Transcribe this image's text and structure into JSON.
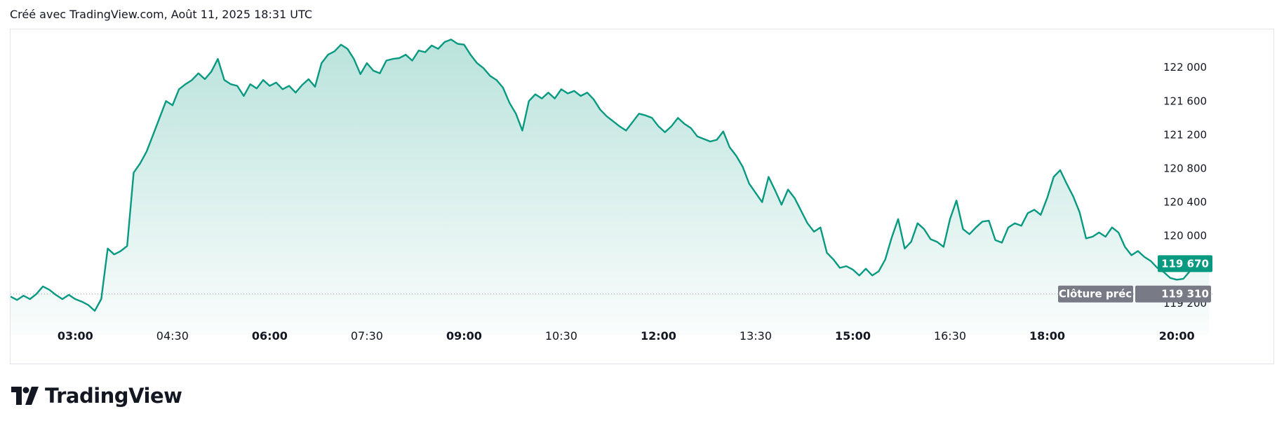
{
  "header": {
    "created_text": "Créé avec TradingView.com, Août 11, 2025 18:31 UTC"
  },
  "brand": {
    "logo_text": "TradingView"
  },
  "colors": {
    "line": "#089981",
    "fill_top": "#b2dfd4",
    "badge_last": "#089981",
    "badge_prev": "#787b86",
    "prev_line": "#9598a1"
  },
  "chart_data": {
    "type": "area",
    "x_ticks": [
      {
        "label": "03:00",
        "t": 3.0,
        "bold": true
      },
      {
        "label": "04:30",
        "t": 4.5,
        "bold": false
      },
      {
        "label": "06:00",
        "t": 6.0,
        "bold": true
      },
      {
        "label": "07:30",
        "t": 7.5,
        "bold": false
      },
      {
        "label": "09:00",
        "t": 9.0,
        "bold": true
      },
      {
        "label": "10:30",
        "t": 10.5,
        "bold": false
      },
      {
        "label": "12:00",
        "t": 12.0,
        "bold": true
      },
      {
        "label": "13:30",
        "t": 13.5,
        "bold": false
      },
      {
        "label": "15:00",
        "t": 15.0,
        "bold": true
      },
      {
        "label": "16:30",
        "t": 16.5,
        "bold": false
      },
      {
        "label": "18:00",
        "t": 18.0,
        "bold": true
      },
      {
        "label": "20:00",
        "t": 20.0,
        "bold": true
      }
    ],
    "y_ticks": [
      {
        "label": "122 000",
        "v": 122000
      },
      {
        "label": "121 600",
        "v": 121600
      },
      {
        "label": "121 200",
        "v": 121200
      },
      {
        "label": "120 800",
        "v": 120800
      },
      {
        "label": "120 400",
        "v": 120400
      },
      {
        "label": "120 000",
        "v": 120000
      },
      {
        "label": "119 200",
        "v": 119200
      }
    ],
    "x_range": [
      2.0,
      20.55
    ],
    "y_range": [
      119100,
      122450
    ],
    "last_price": {
      "label": "119 670",
      "value": 119670
    },
    "prev_close": {
      "name": "Clôture préc",
      "label": "119 310",
      "value": 119310
    },
    "points": [
      [
        2.0,
        119280
      ],
      [
        2.1,
        119240
      ],
      [
        2.2,
        119290
      ],
      [
        2.3,
        119250
      ],
      [
        2.4,
        119310
      ],
      [
        2.5,
        119400
      ],
      [
        2.6,
        119360
      ],
      [
        2.7,
        119300
      ],
      [
        2.8,
        119250
      ],
      [
        2.9,
        119300
      ],
      [
        3.0,
        119250
      ],
      [
        3.1,
        119220
      ],
      [
        3.2,
        119180
      ],
      [
        3.3,
        119110
      ],
      [
        3.4,
        119250
      ],
      [
        3.5,
        119850
      ],
      [
        3.6,
        119780
      ],
      [
        3.7,
        119820
      ],
      [
        3.8,
        119880
      ],
      [
        3.9,
        120750
      ],
      [
        4.0,
        120860
      ],
      [
        4.1,
        121000
      ],
      [
        4.2,
        121200
      ],
      [
        4.3,
        121400
      ],
      [
        4.4,
        121600
      ],
      [
        4.5,
        121550
      ],
      [
        4.6,
        121740
      ],
      [
        4.7,
        121800
      ],
      [
        4.8,
        121850
      ],
      [
        4.9,
        121930
      ],
      [
        5.0,
        121860
      ],
      [
        5.1,
        121950
      ],
      [
        5.2,
        122100
      ],
      [
        5.3,
        121850
      ],
      [
        5.4,
        121800
      ],
      [
        5.5,
        121780
      ],
      [
        5.6,
        121660
      ],
      [
        5.7,
        121800
      ],
      [
        5.8,
        121750
      ],
      [
        5.9,
        121850
      ],
      [
        6.0,
        121780
      ],
      [
        6.1,
        121820
      ],
      [
        6.2,
        121740
      ],
      [
        6.3,
        121780
      ],
      [
        6.4,
        121700
      ],
      [
        6.5,
        121790
      ],
      [
        6.6,
        121860
      ],
      [
        6.7,
        121770
      ],
      [
        6.8,
        122050
      ],
      [
        6.9,
        122150
      ],
      [
        7.0,
        122190
      ],
      [
        7.1,
        122270
      ],
      [
        7.2,
        122220
      ],
      [
        7.3,
        122100
      ],
      [
        7.4,
        121920
      ],
      [
        7.5,
        122050
      ],
      [
        7.6,
        121960
      ],
      [
        7.7,
        121930
      ],
      [
        7.8,
        122080
      ],
      [
        7.9,
        122100
      ],
      [
        8.0,
        122110
      ],
      [
        8.1,
        122150
      ],
      [
        8.2,
        122080
      ],
      [
        8.3,
        122200
      ],
      [
        8.4,
        122180
      ],
      [
        8.5,
        122260
      ],
      [
        8.6,
        122220
      ],
      [
        8.7,
        122300
      ],
      [
        8.8,
        122330
      ],
      [
        8.9,
        122280
      ],
      [
        9.0,
        122270
      ],
      [
        9.1,
        122150
      ],
      [
        9.2,
        122050
      ],
      [
        9.3,
        121990
      ],
      [
        9.4,
        121900
      ],
      [
        9.5,
        121850
      ],
      [
        9.6,
        121760
      ],
      [
        9.7,
        121580
      ],
      [
        9.8,
        121450
      ],
      [
        9.9,
        121250
      ],
      [
        10.0,
        121600
      ],
      [
        10.1,
        121680
      ],
      [
        10.2,
        121630
      ],
      [
        10.3,
        121700
      ],
      [
        10.4,
        121630
      ],
      [
        10.5,
        121740
      ],
      [
        10.6,
        121690
      ],
      [
        10.7,
        121720
      ],
      [
        10.8,
        121660
      ],
      [
        10.9,
        121700
      ],
      [
        11.0,
        121620
      ],
      [
        11.1,
        121500
      ],
      [
        11.2,
        121420
      ],
      [
        11.3,
        121360
      ],
      [
        11.4,
        121300
      ],
      [
        11.5,
        121250
      ],
      [
        11.6,
        121350
      ],
      [
        11.7,
        121450
      ],
      [
        11.8,
        121430
      ],
      [
        11.9,
        121400
      ],
      [
        12.0,
        121300
      ],
      [
        12.1,
        121230
      ],
      [
        12.2,
        121300
      ],
      [
        12.3,
        121400
      ],
      [
        12.4,
        121330
      ],
      [
        12.5,
        121280
      ],
      [
        12.6,
        121180
      ],
      [
        12.7,
        121150
      ],
      [
        12.8,
        121120
      ],
      [
        12.9,
        121140
      ],
      [
        13.0,
        121240
      ],
      [
        13.1,
        121050
      ],
      [
        13.2,
        120950
      ],
      [
        13.3,
        120820
      ],
      [
        13.4,
        120620
      ],
      [
        13.5,
        120510
      ],
      [
        13.6,
        120400
      ],
      [
        13.7,
        120700
      ],
      [
        13.8,
        120540
      ],
      [
        13.9,
        120370
      ],
      [
        14.0,
        120550
      ],
      [
        14.1,
        120450
      ],
      [
        14.2,
        120300
      ],
      [
        14.3,
        120150
      ],
      [
        14.4,
        120050
      ],
      [
        14.5,
        120100
      ],
      [
        14.6,
        119800
      ],
      [
        14.7,
        119720
      ],
      [
        14.8,
        119620
      ],
      [
        14.9,
        119640
      ],
      [
        15.0,
        119600
      ],
      [
        15.1,
        119530
      ],
      [
        15.2,
        119610
      ],
      [
        15.3,
        119530
      ],
      [
        15.4,
        119580
      ],
      [
        15.5,
        119720
      ],
      [
        15.6,
        119980
      ],
      [
        15.7,
        120200
      ],
      [
        15.8,
        119850
      ],
      [
        15.9,
        119930
      ],
      [
        16.0,
        120150
      ],
      [
        16.1,
        120080
      ],
      [
        16.2,
        119960
      ],
      [
        16.3,
        119930
      ],
      [
        16.4,
        119870
      ],
      [
        16.5,
        120200
      ],
      [
        16.6,
        120420
      ],
      [
        16.7,
        120080
      ],
      [
        16.8,
        120020
      ],
      [
        16.9,
        120100
      ],
      [
        17.0,
        120170
      ],
      [
        17.1,
        120180
      ],
      [
        17.2,
        119950
      ],
      [
        17.3,
        119920
      ],
      [
        17.4,
        120100
      ],
      [
        17.5,
        120150
      ],
      [
        17.6,
        120120
      ],
      [
        17.7,
        120270
      ],
      [
        17.8,
        120310
      ],
      [
        17.9,
        120250
      ],
      [
        18.0,
        120450
      ],
      [
        18.1,
        120700
      ],
      [
        18.2,
        120780
      ],
      [
        18.3,
        120620
      ],
      [
        18.4,
        120470
      ],
      [
        18.5,
        120280
      ],
      [
        18.6,
        119970
      ],
      [
        18.7,
        119990
      ],
      [
        18.8,
        120040
      ],
      [
        18.9,
        119990
      ],
      [
        19.0,
        120100
      ],
      [
        19.1,
        120040
      ],
      [
        19.2,
        119870
      ],
      [
        19.3,
        119770
      ],
      [
        19.4,
        119820
      ],
      [
        19.5,
        119750
      ],
      [
        19.6,
        119700
      ],
      [
        19.7,
        119620
      ],
      [
        19.8,
        119570
      ],
      [
        19.9,
        119500
      ],
      [
        20.0,
        119480
      ],
      [
        20.1,
        119490
      ],
      [
        20.2,
        119580
      ],
      [
        20.3,
        119620
      ],
      [
        20.4,
        119680
      ],
      [
        20.5,
        119670
      ]
    ]
  }
}
